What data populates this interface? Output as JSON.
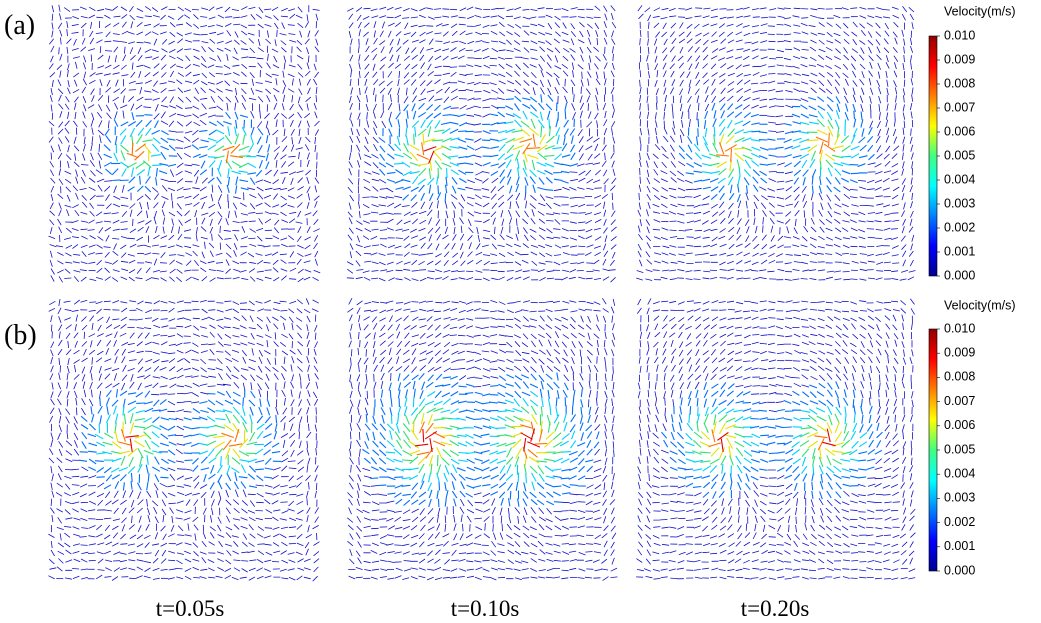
{
  "figure": {
    "row_labels": [
      "(a)",
      "(b)"
    ],
    "time_labels": [
      "t=0.05s",
      "t=0.10s",
      "t=0.20s"
    ],
    "colorbars": [
      {
        "title": "Velocity(m/s)",
        "ticks": [
          "0.010",
          "0.009",
          "0.008",
          "0.007",
          "0.006",
          "0.005",
          "0.004",
          "0.003",
          "0.002",
          "0.001",
          "0.000"
        ]
      },
      {
        "title": "Velocity(m/s)",
        "ticks": [
          "0.010",
          "0.009",
          "0.008",
          "0.007",
          "0.006",
          "0.005",
          "0.004",
          "0.003",
          "0.002",
          "0.001",
          "0.000"
        ]
      }
    ]
  }
}
